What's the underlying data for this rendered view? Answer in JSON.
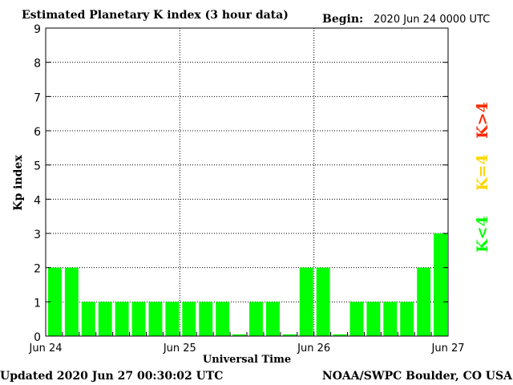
{
  "chart_data": {
    "type": "bar",
    "title": "Estimated Planetary K index (3 hour data)",
    "begin_label": "Begin:",
    "begin_value": "2020 Jun 24 0000 UTC",
    "xlabel": "Universal Time",
    "ylabel": "Kp index",
    "ylim": [
      0,
      9
    ],
    "yticks": [
      "0",
      "1",
      "2",
      "3",
      "4",
      "5",
      "6",
      "7",
      "8",
      "9"
    ],
    "xlim": [
      0,
      24
    ],
    "xticks": [
      {
        "label": "Jun 24",
        "x": 0
      },
      {
        "label": "Jun 25",
        "x": 8
      },
      {
        "label": "Jun 26",
        "x": 16
      },
      {
        "label": "Jun 27",
        "x": 24
      }
    ],
    "grid": true,
    "bar_color": "#00ff00",
    "values": [
      2,
      2,
      1,
      1,
      1,
      1,
      1,
      1,
      1,
      1,
      1,
      0.05,
      1,
      1,
      0.05,
      2,
      2,
      0.05,
      1,
      1,
      1,
      1,
      2,
      3
    ],
    "legend": [
      {
        "label": "K>4",
        "color": "#ff2a00"
      },
      {
        "label": "K=4",
        "color": "#ffd700"
      },
      {
        "label": "K<4",
        "color": "#00ff00"
      }
    ]
  },
  "footer": {
    "updated": "Updated 2020 Jun 27 00:30:02 UTC",
    "source": "NOAA/SWPC Boulder, CO USA"
  }
}
